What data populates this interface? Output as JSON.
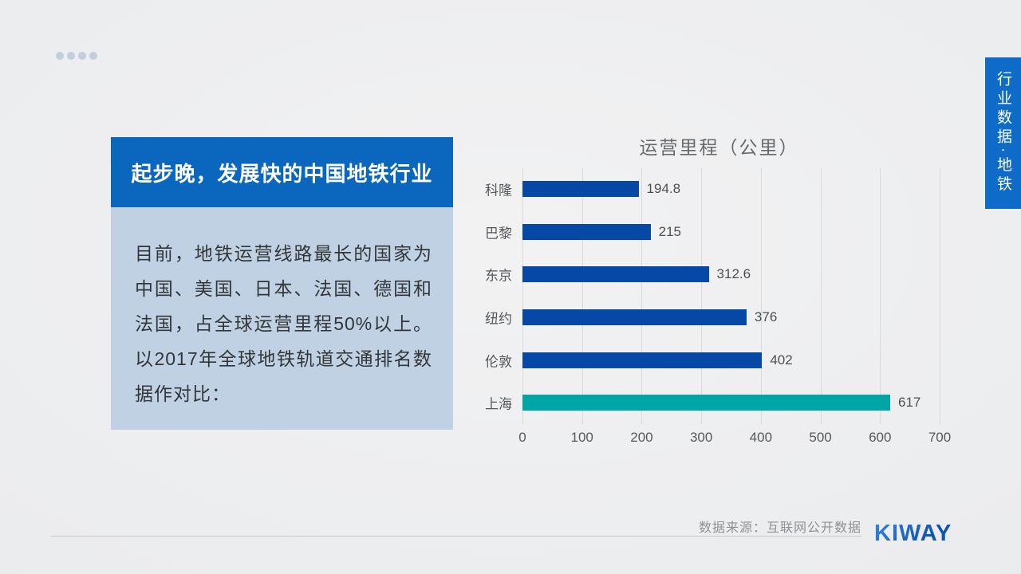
{
  "panel": {
    "title": "起步晚，发展快的中国地铁行业",
    "body": "目前，地铁运营线路最长的国家为中国、美国、日本、法国、德国和法国，占全球运营里程50%以上。以2017年全球地铁轨道交通排名数据作对比："
  },
  "chart_data": {
    "type": "bar",
    "orientation": "horizontal",
    "title": "运营里程（公里）",
    "categories": [
      "科隆",
      "巴黎",
      "东京",
      "纽约",
      "伦敦",
      "上海"
    ],
    "values": [
      194.8,
      215,
      312.6,
      376,
      402,
      617
    ],
    "value_labels": [
      "194.8",
      "215",
      "312.6",
      "376",
      "402",
      "617"
    ],
    "xlim": [
      0,
      700
    ],
    "x_ticks": [
      0,
      100,
      200,
      300,
      400,
      500,
      600,
      700
    ],
    "grid": true,
    "legend": "none",
    "bar_color": "#0548a6",
    "highlight_category": "上海",
    "highlight_color": "#00a6a6"
  },
  "side_tab": {
    "label": "行业数据·地铁",
    "background": "#0e6cc8"
  },
  "footer": {
    "source": "数据来源：互联网公开数据",
    "logo": "KIWAY"
  }
}
